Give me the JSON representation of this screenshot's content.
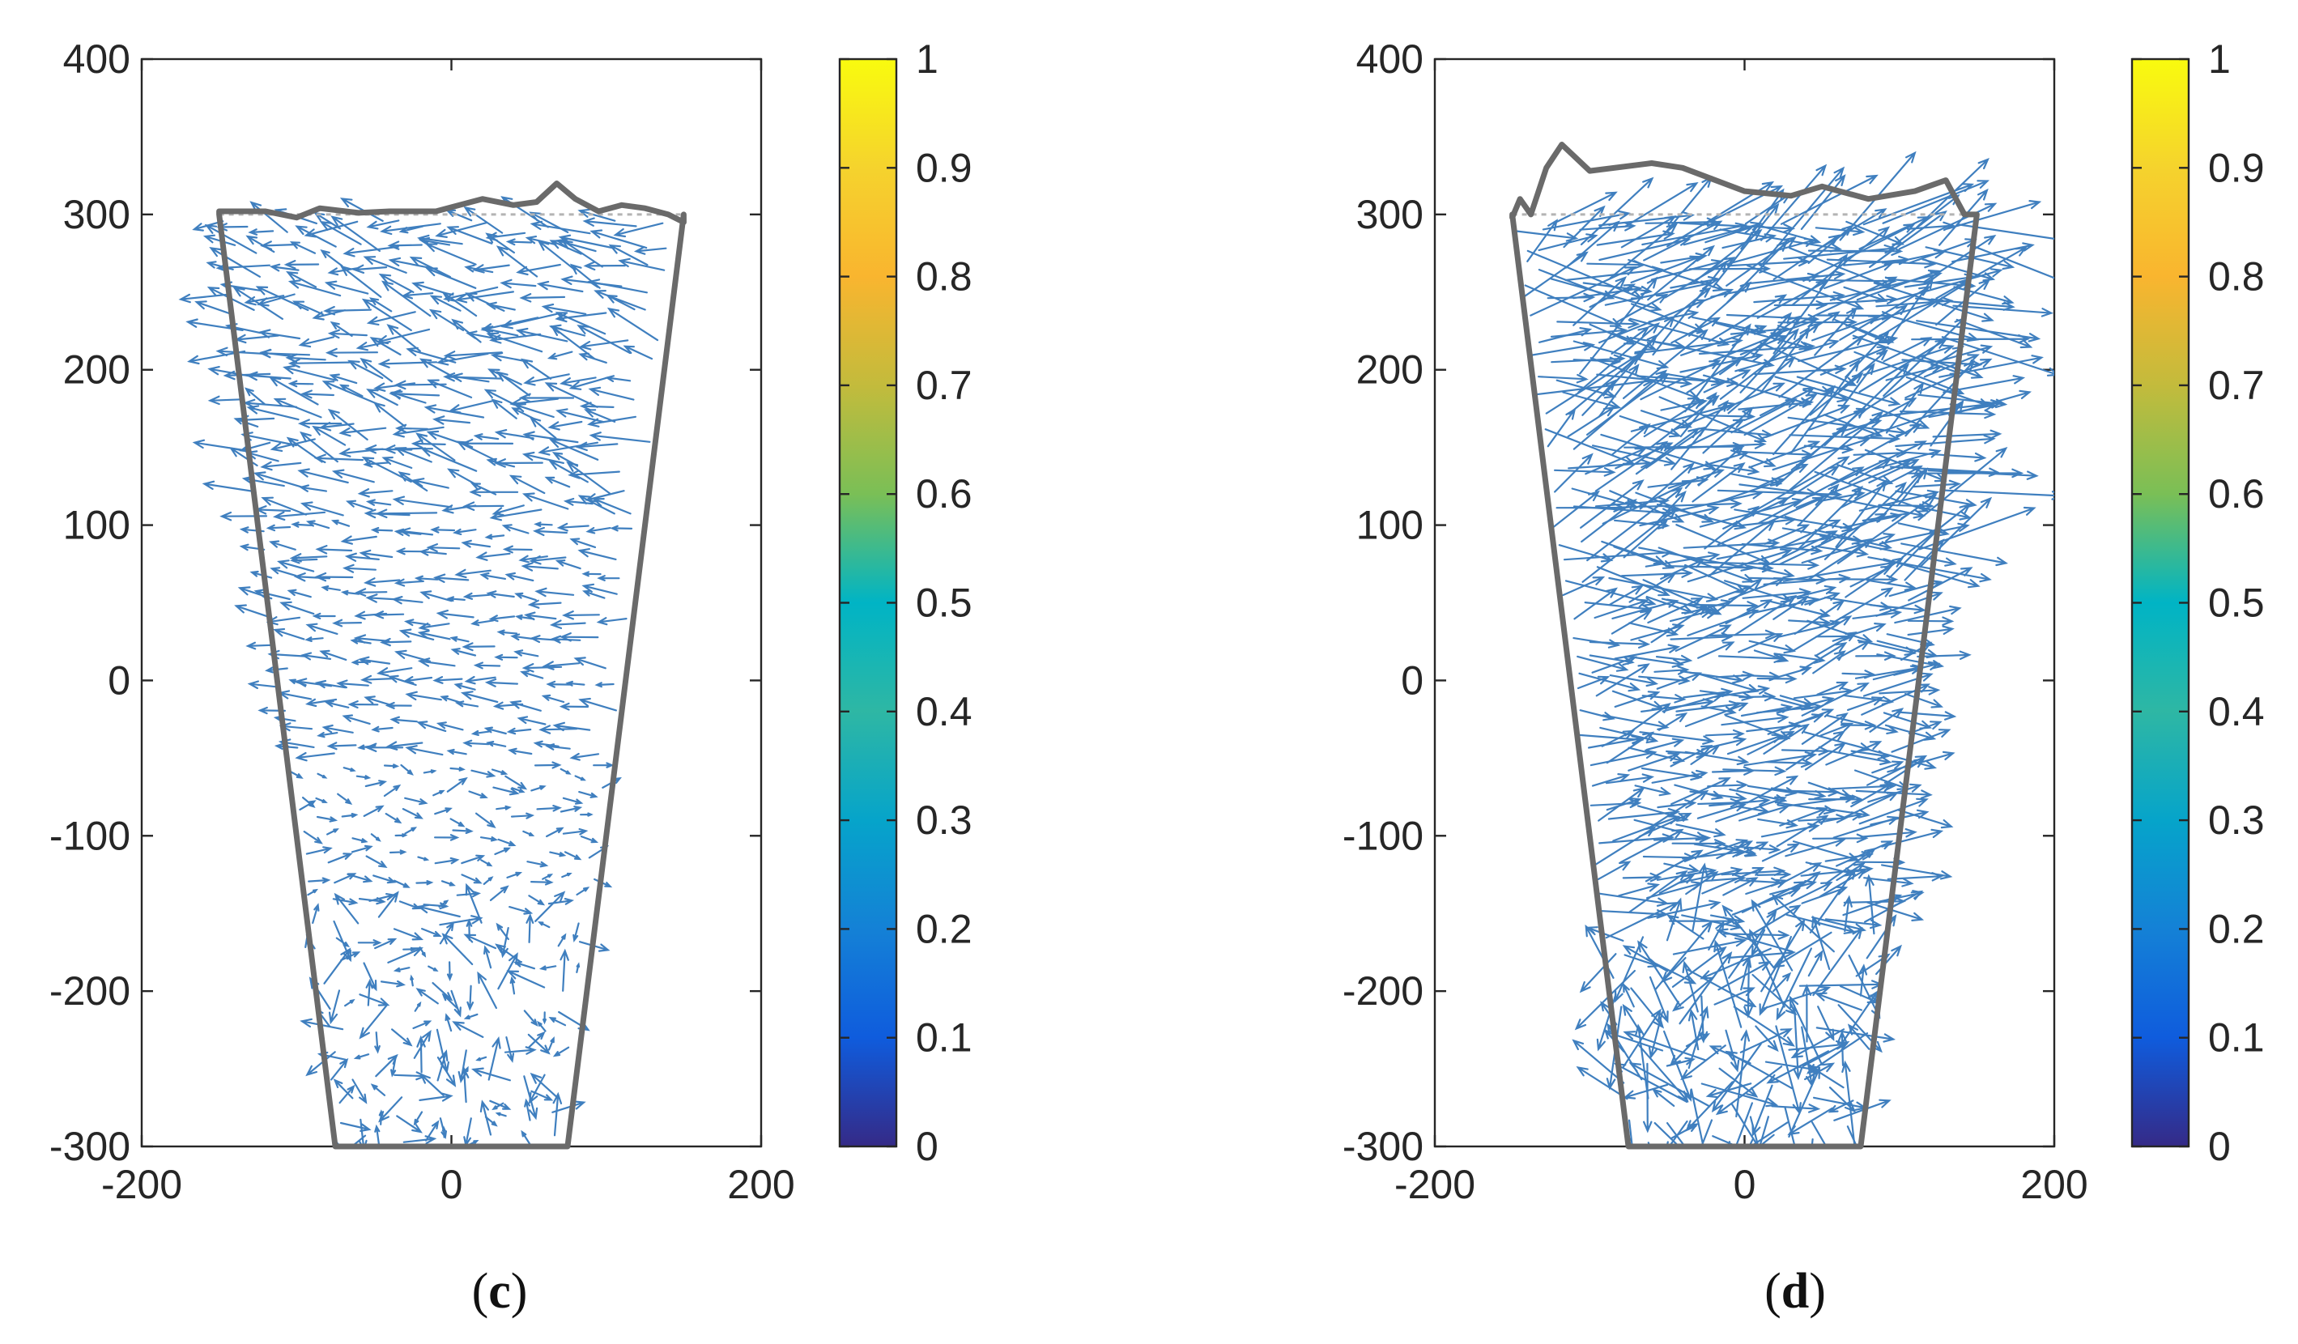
{
  "chart_data": [
    {
      "type": "quiver",
      "panel_label": "c",
      "xlim": [
        -200,
        200
      ],
      "ylim": [
        -300,
        400
      ],
      "xticks": [
        "-200",
        "0",
        "200"
      ],
      "yticks": [
        "400",
        "300",
        "200",
        "100",
        "0",
        "-100",
        "-200",
        "-300"
      ],
      "colorbar": {
        "limits": [
          0,
          1
        ],
        "ticks": [
          "1",
          "0.9",
          "0.8",
          "0.7",
          "0.6",
          "0.5",
          "0.4",
          "0.3",
          "0.2",
          "0.1",
          "0"
        ]
      },
      "arrow_color": "#3f7fbf",
      "boundary_color": "#6a6a6a",
      "region": {
        "bottom_y": -300,
        "bottom_x": [
          -75,
          75
        ],
        "top_y": 300,
        "top_x": [
          -150,
          150
        ]
      },
      "deformed_top_surface": [
        [
          -150,
          302
        ],
        [
          -120,
          302
        ],
        [
          -100,
          298
        ],
        [
          -85,
          304
        ],
        [
          -60,
          301
        ],
        [
          -40,
          302
        ],
        [
          -10,
          302
        ],
        [
          20,
          310
        ],
        [
          40,
          306
        ],
        [
          55,
          308
        ],
        [
          68,
          320
        ],
        [
          80,
          310
        ],
        [
          95,
          302
        ],
        [
          110,
          306
        ],
        [
          125,
          304
        ],
        [
          140,
          300
        ],
        [
          150,
          295
        ]
      ],
      "field": {
        "seed": 11,
        "dx": 14,
        "dy": 14,
        "layers": [
          {
            "y": [
              -300,
              -150
            ],
            "dir": 0,
            "spread": 170,
            "len": [
              5,
              28
            ]
          },
          {
            "y": [
              -150,
              -50
            ],
            "dir": 0,
            "spread": 40,
            "len": [
              5,
              16
            ]
          },
          {
            "y": [
              -50,
              100
            ],
            "dir": 175,
            "spread": 14,
            "len": [
              10,
              24
            ]
          },
          {
            "y": [
              100,
              300
            ],
            "dir": 168,
            "spread": 28,
            "len": [
              14,
              38
            ]
          }
        ]
      }
    },
    {
      "type": "quiver",
      "panel_label": "d",
      "xlim": [
        -200,
        200
      ],
      "ylim": [
        -300,
        400
      ],
      "xticks": [
        "-200",
        "0",
        "200"
      ],
      "yticks": [
        "400",
        "300",
        "200",
        "100",
        "0",
        "-100",
        "-200",
        "-300"
      ],
      "colorbar": {
        "limits": [
          0,
          1
        ],
        "ticks": [
          "1",
          "0.9",
          "0.8",
          "0.7",
          "0.6",
          "0.5",
          "0.4",
          "0.3",
          "0.2",
          "0.1",
          "0"
        ]
      },
      "arrow_color": "#3f7fbf",
      "boundary_color": "#6a6a6a",
      "region": {
        "bottom_y": -300,
        "bottom_x": [
          -75,
          75
        ],
        "top_y": 300,
        "top_x": [
          -150,
          150
        ]
      },
      "deformed_top_surface": [
        [
          -150,
          298
        ],
        [
          -145,
          310
        ],
        [
          -138,
          300
        ],
        [
          -128,
          330
        ],
        [
          -118,
          345
        ],
        [
          -100,
          328
        ],
        [
          -60,
          333
        ],
        [
          -40,
          330
        ],
        [
          0,
          315
        ],
        [
          30,
          312
        ],
        [
          50,
          318
        ],
        [
          80,
          310
        ],
        [
          110,
          315
        ],
        [
          130,
          322
        ],
        [
          142,
          300
        ]
      ],
      "field": {
        "seed": 37,
        "dx": 13,
        "dy": 12,
        "layers": [
          {
            "y": [
              -300,
              -160
            ],
            "dir": 0,
            "spread": 170,
            "len": [
              15,
              58
            ]
          },
          {
            "y": [
              -160,
              60
            ],
            "dir": 8,
            "spread": 28,
            "len": [
              20,
              48
            ]
          },
          {
            "y": [
              60,
              300
            ],
            "dir": 15,
            "spread": 40,
            "len": [
              28,
              80
            ]
          }
        ]
      }
    }
  ],
  "captions": [
    {
      "open": "(",
      "letter": "c",
      "close": ")"
    },
    {
      "open": "(",
      "letter": "d",
      "close": ")"
    }
  ]
}
